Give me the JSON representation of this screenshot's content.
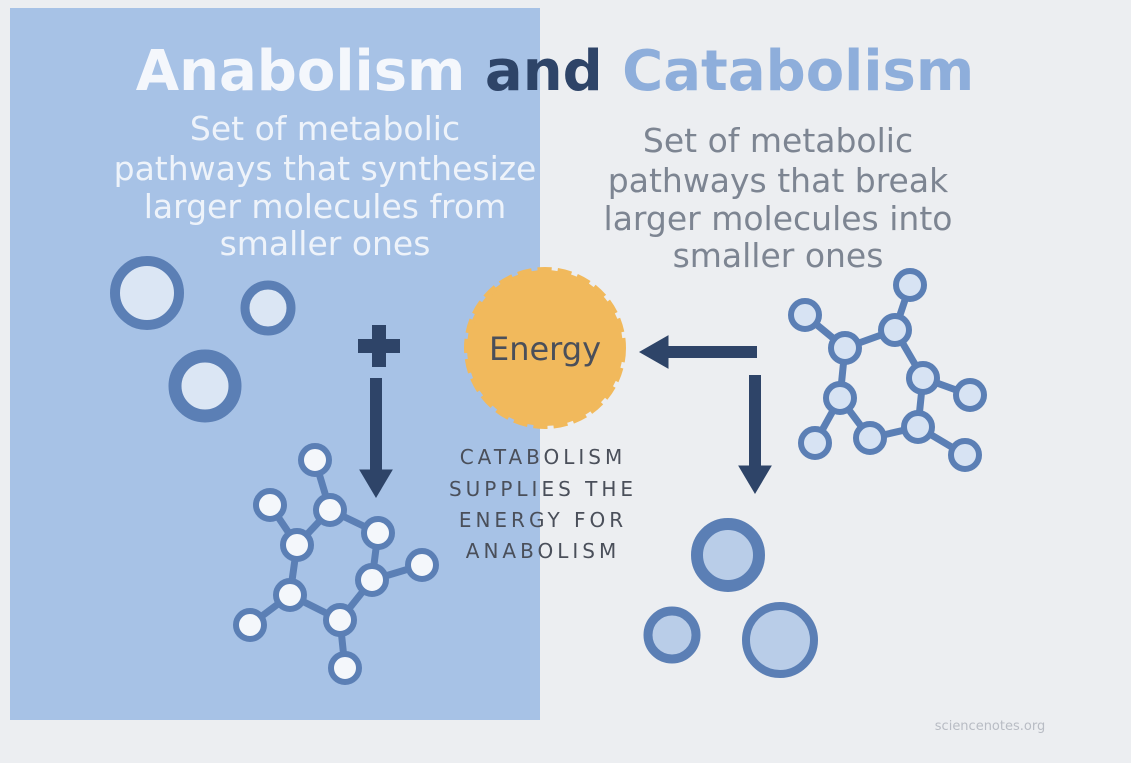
{
  "title": {
    "part1": "Anabolism",
    "part2": "and",
    "part3": "Catabolism"
  },
  "anabolism": {
    "description": [
      "Set of metabolic",
      "pathways that synthesize",
      "larger molecules from",
      "smaller ones"
    ]
  },
  "catabolism": {
    "description": [
      "Set of metabolic",
      "pathways that break",
      "larger molecules into",
      "smaller ones"
    ]
  },
  "energy": {
    "label": "Energy"
  },
  "note": {
    "lines": [
      "CATABOLISM",
      "SUPPLIES THE",
      "ENERGY FOR",
      "ANABOLISM"
    ]
  },
  "footer": {
    "source": "sciencenotes.org"
  }
}
